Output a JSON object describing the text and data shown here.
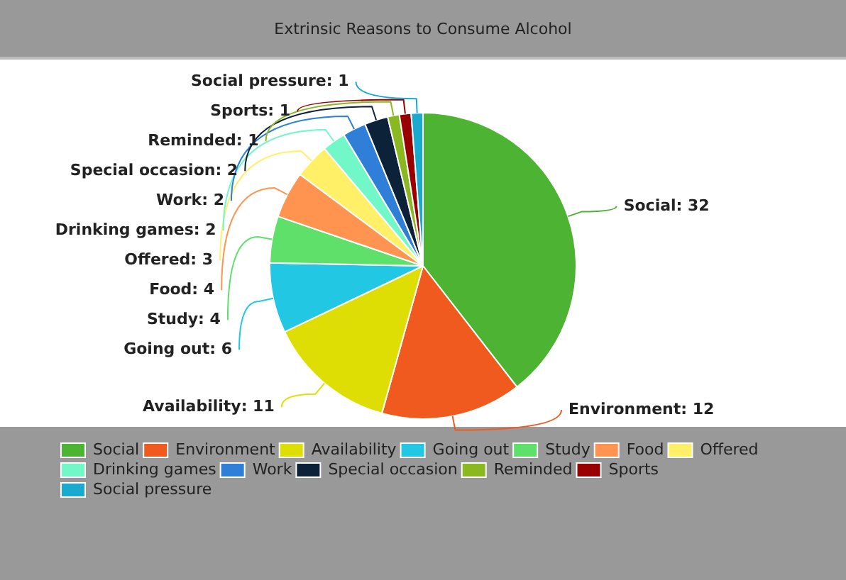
{
  "chart_data": {
    "type": "pie",
    "title": "Extrinsic Reasons to Consume Alcohol",
    "categories": [
      "Social",
      "Environment",
      "Availability",
      "Going out",
      "Study",
      "Food",
      "Offered",
      "Drinking games",
      "Work",
      "Special occasion",
      "Reminded",
      "Sports",
      "Social pressure"
    ],
    "values": [
      32,
      12,
      11,
      6,
      4,
      4,
      3,
      2,
      2,
      2,
      1,
      1,
      1
    ],
    "colors": [
      "#4db332",
      "#f05a1e",
      "#dede05",
      "#22c8e3",
      "#5ee06a",
      "#ff9450",
      "#fff068",
      "#72f7c8",
      "#2f7fd8",
      "#0c2238",
      "#8ab820",
      "#990000",
      "#1aaad0"
    ],
    "value_labels": [
      "Social: 32",
      "Environment: 12",
      "Availability: 11",
      "Going out: 6",
      "Study: 4",
      "Food: 4",
      "Offered: 3",
      "Drinking games: 2",
      "Work: 2",
      "Special occasion: 2",
      "Reminded: 1",
      "Sports: 1",
      "Social pressure: 1"
    ],
    "legend": "bottom"
  }
}
